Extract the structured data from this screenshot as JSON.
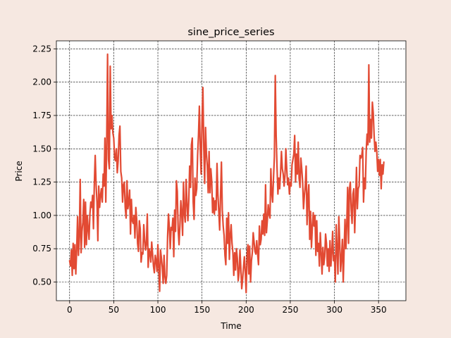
{
  "chart_data": {
    "type": "line",
    "title": "sine_price_series",
    "xlabel": "Time",
    "ylabel": "Price",
    "xlim": [
      -15,
      381
    ],
    "ylim": [
      0.36,
      2.31
    ],
    "xticks": [
      0,
      50,
      100,
      150,
      200,
      250,
      300,
      350
    ],
    "yticks": [
      0.5,
      0.75,
      1.0,
      1.25,
      1.5,
      1.75,
      2.0,
      2.25
    ],
    "ytick_labels": [
      "0.50",
      "0.75",
      "1.00",
      "1.25",
      "1.50",
      "1.75",
      "2.00",
      "2.25"
    ],
    "grid": true,
    "line_color": "#e24a33",
    "series": [
      {
        "x_start": 0,
        "x_step": 1,
        "values": [
          0.66,
          0.62,
          0.74,
          0.55,
          0.79,
          0.6,
          0.78,
          0.56,
          0.74,
          0.99,
          0.7,
          0.84,
          1.27,
          0.72,
          0.88,
          0.95,
          1.12,
          0.76,
          1.1,
          0.78,
          1.0,
          0.9,
          0.82,
          1.01,
          1.1,
          1.06,
          1.15,
          0.9,
          1.24,
          1.45,
          1.23,
          1.1,
          0.81,
          1.22,
          1.06,
          1.15,
          1.2,
          1.1,
          1.31,
          1.22,
          1.58,
          1.1,
          1.55,
          2.21,
          1.42,
          1.35,
          2.12,
          1.65,
          1.75,
          1.62,
          1.58,
          1.43,
          1.41,
          1.5,
          1.32,
          1.41,
          1.6,
          1.67,
          1.33,
          1.28,
          1.1,
          1.23,
          1.25,
          1.06,
          0.98,
          1.26,
          1.05,
          1.1,
          1.19,
          0.86,
          1.12,
          0.96,
          0.94,
          1.0,
          0.83,
          1.06,
          0.97,
          0.79,
          0.73,
          0.96,
          0.9,
          0.65,
          0.72,
          0.71,
          0.93,
          0.82,
          0.74,
          0.79,
          1.01,
          0.61,
          0.75,
          0.72,
          0.65,
          0.8,
          0.71,
          0.62,
          0.57,
          0.7,
          0.66,
          0.58,
          0.78,
          0.61,
          0.43,
          0.74,
          0.68,
          0.61,
          0.49,
          0.7,
          0.54,
          0.49,
          0.55,
          0.84,
          1.01,
          0.91,
          0.75,
          0.91,
          0.89,
          0.98,
          0.69,
          1.04,
          0.88,
          1.26,
          1.18,
          0.89,
          0.78,
          0.93,
          1.11,
          1.02,
          0.85,
          1.25,
          1.01,
          0.95,
          1.27,
          1.09,
          0.96,
          1.11,
          1.37,
          1.21,
          1.53,
          1.58,
          1.1,
          0.97,
          1.28,
          1.15,
          1.2,
          1.45,
          1.6,
          1.82,
          1.5,
          1.31,
          1.71,
          1.96,
          1.51,
          1.24,
          1.66,
          1.46,
          1.37,
          1.17,
          1.48,
          1.17,
          1.35,
          1.26,
          1.02,
          1.13,
          1.01,
          1.11,
          1.04,
          1.39,
          1.16,
          1.03,
          0.89,
          1.15,
          1.4,
          1.04,
          0.92,
          0.85,
          0.7,
          0.63,
          0.98,
          0.79,
          1.02,
          0.67,
          0.85,
          0.93,
          0.79,
          0.72,
          0.55,
          0.72,
          0.59,
          0.75,
          0.68,
          0.51,
          0.57,
          0.74,
          0.6,
          0.45,
          0.52,
          0.61,
          0.69,
          0.58,
          0.42,
          0.7,
          0.78,
          0.56,
          0.77,
          0.5,
          0.66,
          0.72,
          0.87,
          0.8,
          0.73,
          0.71,
          0.81,
          0.71,
          0.63,
          0.92,
          0.78,
          0.82,
          0.96,
          0.86,
          1.01,
          0.85,
          1.23,
          0.87,
          0.96,
          1.08,
          1.01,
          0.98,
          1.35,
          1.17,
          1.1,
          1.28,
          1.44,
          2.05,
          1.6,
          1.36,
          1.16,
          1.28,
          1.2,
          1.32,
          1.48,
          1.35,
          1.31,
          1.22,
          1.3,
          1.5,
          1.35,
          1.23,
          1.28,
          1.16,
          1.25,
          1.22,
          1.38,
          1.42,
          1.46,
          1.6,
          1.25,
          1.46,
          1.31,
          1.55,
          1.28,
          1.21,
          1.43,
          1.35,
          1.25,
          1.05,
          1.15,
          1.22,
          1.37,
          0.93,
          1.14,
          1.23,
          0.82,
          1.03,
          0.76,
          0.91,
          1.02,
          0.92,
          1.0,
          0.7,
          0.96,
          0.73,
          0.79,
          0.62,
          0.87,
          0.72,
          0.56,
          0.76,
          0.63,
          0.69,
          0.86,
          0.79,
          0.62,
          0.75,
          0.58,
          0.81,
          0.62,
          0.72,
          0.88,
          0.66,
          0.7,
          0.5,
          0.93,
          0.74,
          0.56,
          0.99,
          0.8,
          0.58,
          0.68,
          0.82,
          0.5,
          0.74,
          0.97,
          0.75,
          0.93,
          1.21,
          0.79,
          1.19,
          1.25,
          1.05,
          0.94,
          1.16,
          1.2,
          0.87,
          1.1,
          1.36,
          1.05,
          1.2,
          1.22,
          1.45,
          1.43,
          1.45,
          1.51,
          1.1,
          1.28,
          1.2,
          1.48,
          1.61,
          1.53,
          2.13,
          1.55,
          1.72,
          1.58,
          1.85,
          1.77,
          1.6,
          1.48,
          1.55,
          1.48,
          1.33,
          1.42,
          1.3,
          1.42,
          1.2,
          1.38,
          1.31,
          1.4
        ]
      }
    ]
  }
}
